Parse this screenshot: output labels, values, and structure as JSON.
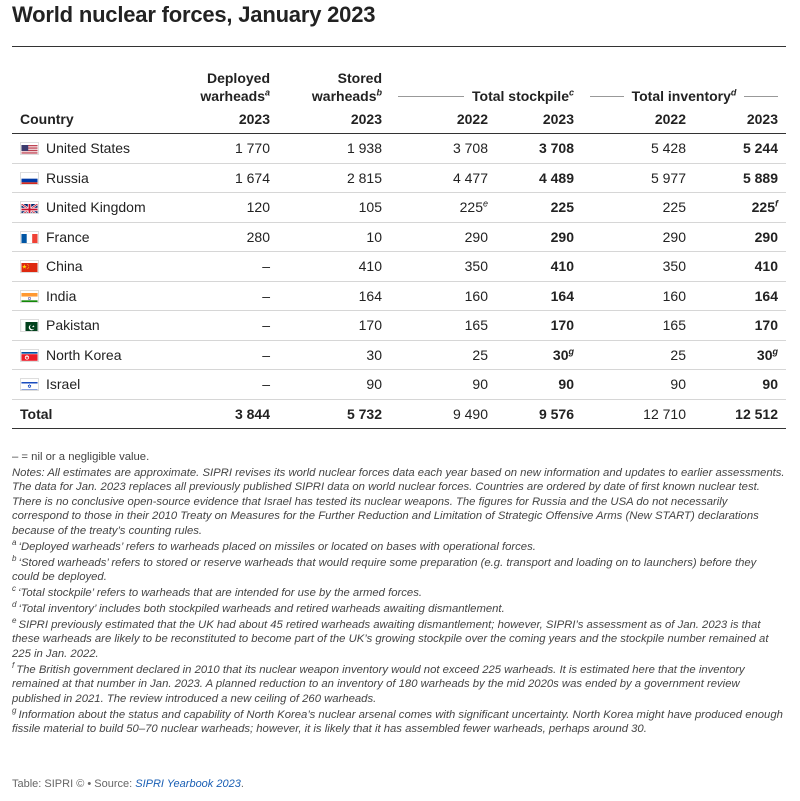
{
  "title": "World nuclear forces, January 2023",
  "headers": {
    "deployed": "Deployed warheads",
    "deployed_sup": "a",
    "stored": "Stored warheads",
    "stored_sup": "b",
    "stockpile": "Total stockpile",
    "stockpile_sup": "c",
    "inventory": "Total inventory",
    "inventory_sup": "d",
    "country": "Country",
    "y2023": "2023",
    "y2022": "2022"
  },
  "rows": [
    {
      "flag": "us-flag-icon",
      "country": "United States",
      "deployed": "1 770",
      "stored": "1 938",
      "stockpile_2022": "3 708",
      "stockpile_2022_sup": "",
      "stockpile_2023": "3 708",
      "stockpile_2023_sup": "",
      "inventory_2022": "5 428",
      "inventory_2023": "5 244",
      "inventory_2023_sup": ""
    },
    {
      "flag": "russia-flag-icon",
      "country": "Russia",
      "deployed": "1 674",
      "stored": "2 815",
      "stockpile_2022": "4 477",
      "stockpile_2022_sup": "",
      "stockpile_2023": "4 489",
      "stockpile_2023_sup": "",
      "inventory_2022": "5 977",
      "inventory_2023": "5 889",
      "inventory_2023_sup": ""
    },
    {
      "flag": "uk-flag-icon",
      "country": "United Kingdom",
      "deployed": "120",
      "stored": "105",
      "stockpile_2022": "225",
      "stockpile_2022_sup": "e",
      "stockpile_2023": "225",
      "stockpile_2023_sup": "",
      "inventory_2022": "225",
      "inventory_2023": "225",
      "inventory_2023_sup": "f"
    },
    {
      "flag": "france-flag-icon",
      "country": "France",
      "deployed": "280",
      "stored": "10",
      "stockpile_2022": "290",
      "stockpile_2022_sup": "",
      "stockpile_2023": "290",
      "stockpile_2023_sup": "",
      "inventory_2022": "290",
      "inventory_2023": "290",
      "inventory_2023_sup": ""
    },
    {
      "flag": "china-flag-icon",
      "country": "China",
      "deployed": "–",
      "stored": "410",
      "stockpile_2022": "350",
      "stockpile_2022_sup": "",
      "stockpile_2023": "410",
      "stockpile_2023_sup": "",
      "inventory_2022": "350",
      "inventory_2023": "410",
      "inventory_2023_sup": ""
    },
    {
      "flag": "india-flag-icon",
      "country": "India",
      "deployed": "–",
      "stored": "164",
      "stockpile_2022": "160",
      "stockpile_2022_sup": "",
      "stockpile_2023": "164",
      "stockpile_2023_sup": "",
      "inventory_2022": "160",
      "inventory_2023": "164",
      "inventory_2023_sup": ""
    },
    {
      "flag": "pakistan-flag-icon",
      "country": "Pakistan",
      "deployed": "–",
      "stored": "170",
      "stockpile_2022": "165",
      "stockpile_2022_sup": "",
      "stockpile_2023": "170",
      "stockpile_2023_sup": "",
      "inventory_2022": "165",
      "inventory_2023": "170",
      "inventory_2023_sup": ""
    },
    {
      "flag": "north-korea-flag-icon",
      "country": "North Korea",
      "deployed": "–",
      "stored": "30",
      "stockpile_2022": "25",
      "stockpile_2022_sup": "",
      "stockpile_2023": "30",
      "stockpile_2023_sup": "g",
      "inventory_2022": "25",
      "inventory_2023": "30",
      "inventory_2023_sup": "g"
    },
    {
      "flag": "israel-flag-icon",
      "country": "Israel",
      "deployed": "–",
      "stored": "90",
      "stockpile_2022": "90",
      "stockpile_2022_sup": "",
      "stockpile_2023": "90",
      "stockpile_2023_sup": "",
      "inventory_2022": "90",
      "inventory_2023": "90",
      "inventory_2023_sup": ""
    }
  ],
  "total": {
    "label": "Total",
    "deployed": "3 844",
    "stored": "5 732",
    "stockpile_2022": "9 490",
    "stockpile_2023": "9 576",
    "inventory_2022": "12 710",
    "inventory_2023": "12 512"
  },
  "notes": {
    "dash": "– = nil or a negligible value.",
    "general": "Notes: All estimates are approximate. SIPRI revises its world nuclear forces data each year based on new information and updates to earlier assessments. The data for Jan. 2023 replaces all previously published SIPRI data on world nuclear forces. Countries are ordered by date of first known nuclear test. There is no conclusive open-source evidence that Israel has tested its nuclear weapons. The figures for Russia and the USA do not necessarily correspond to those in their 2010 Treaty on Measures for the Further Reduction and Limitation of Strategic Offensive Arms (New START) declarations because of the treaty’s counting rules.",
    "footnotes": [
      {
        "mark": "a",
        "text": "‘Deployed warheads’ refers to warheads placed on missiles or located on bases with operational forces."
      },
      {
        "mark": "b",
        "text": "‘Stored warheads’ refers to stored or reserve warheads that would require some preparation (e.g. transport and loading on to launchers) before they could be deployed."
      },
      {
        "mark": "c",
        "text": "‘Total stockpile’ refers to warheads that are intended for use by the armed forces."
      },
      {
        "mark": "d",
        "text": "‘Total inventory’ includes both stockpiled warheads and retired warheads awaiting dismantlement."
      },
      {
        "mark": "e",
        "text": "SIPRI previously estimated that the UK had about 45 retired warheads awaiting dismantlement; however, SIPRI’s assessment as of Jan. 2023 is that these warheads are likely to be reconstituted to become part of the UK’s growing stockpile over the coming years and the stockpile number remained at 225 in Jan. 2022."
      },
      {
        "mark": "f",
        "text": "The British government declared in 2010 that its nuclear weapon inventory would not exceed 225 warheads. It is estimated here that the inventory remained at that number in Jan. 2023. A planned reduction to an inventory of 180 warheads by the mid 2020s was ended by a government review published in 2021. The review introduced a new ceiling of 260 warheads."
      },
      {
        "mark": "g",
        "text": "Information about the status and capability of North Korea’s nuclear arsenal comes with significant uncertainty. North Korea might have produced enough fissile material to build 50–70 nuclear warheads; however, it is likely that it has assembled fewer warheads, perhaps around 30."
      }
    ]
  },
  "source": {
    "prefix": "Table: SIPRI © • Source: ",
    "link": "SIPRI Yearbook 2023",
    "suffix": "."
  }
}
